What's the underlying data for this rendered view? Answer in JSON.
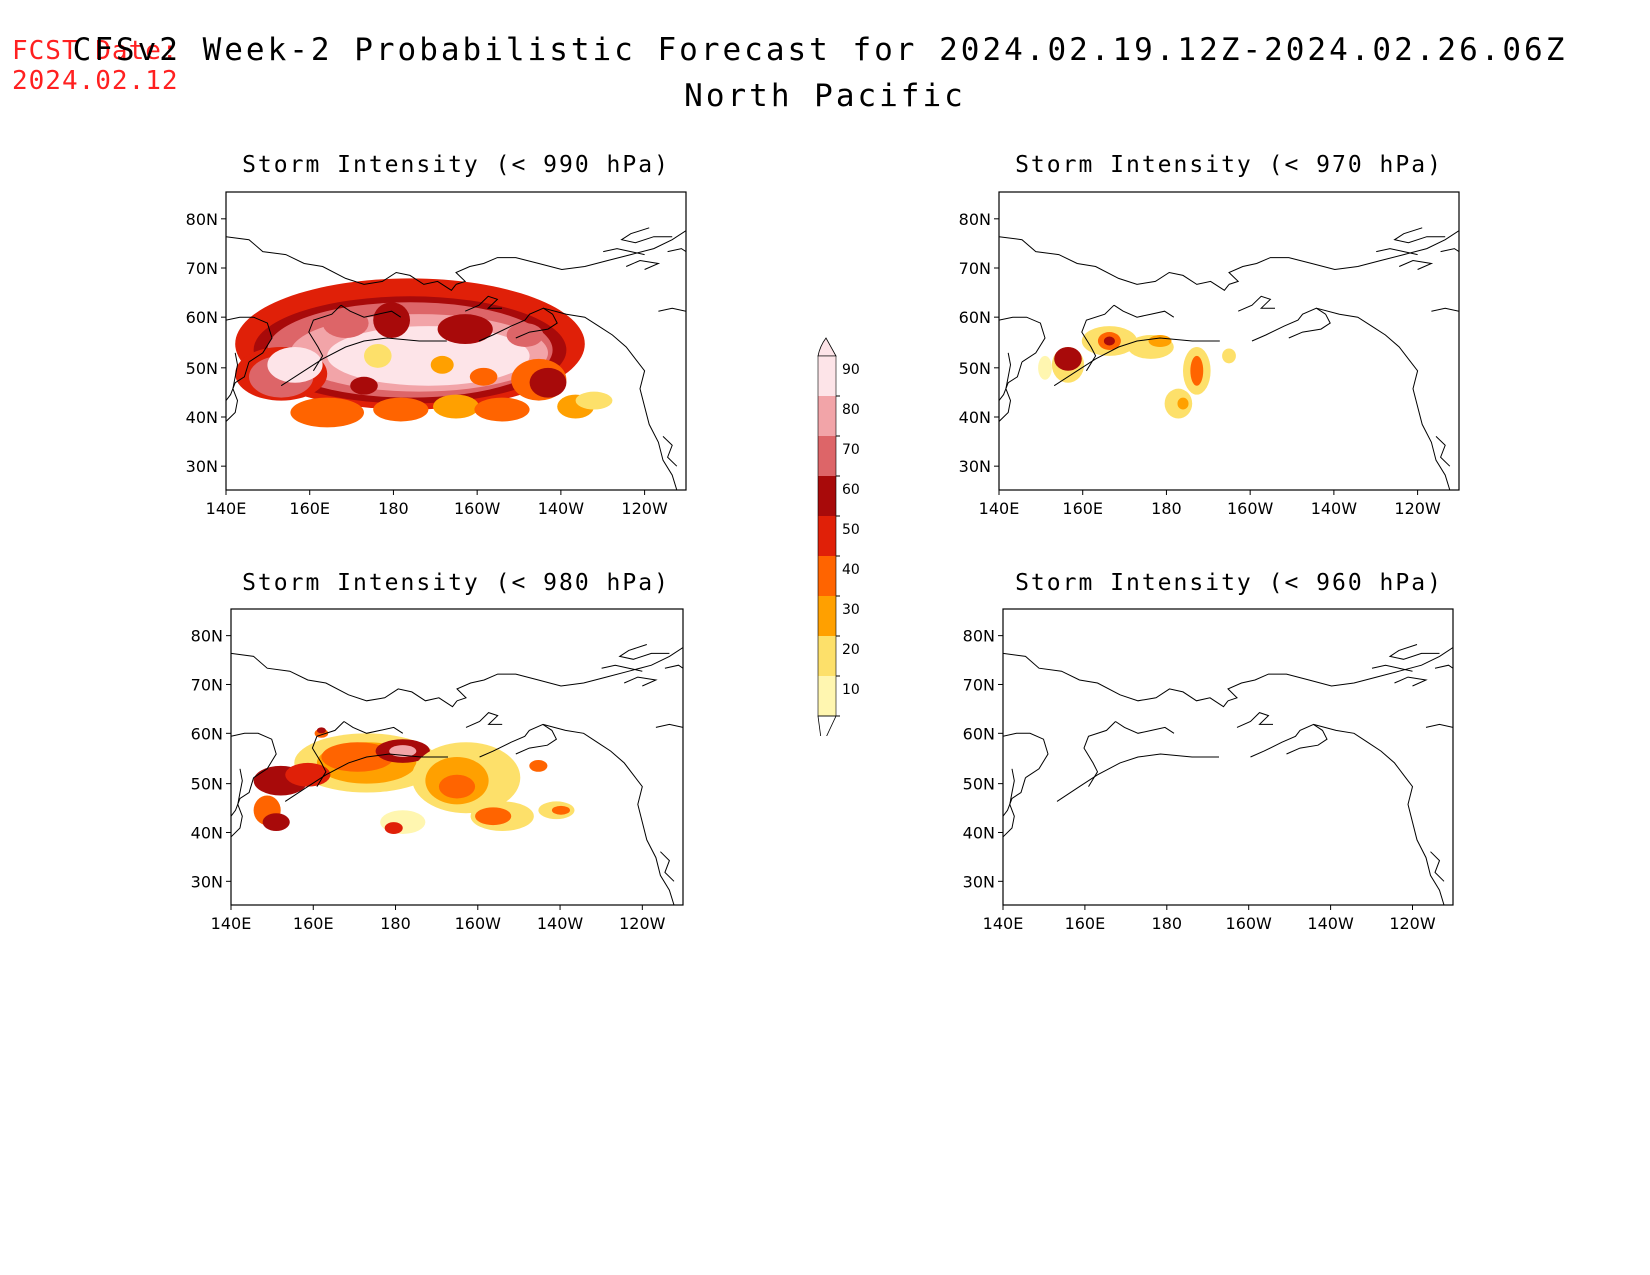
{
  "header": {
    "fcst_label": "FCST Date:",
    "fcst_date": "2024.02.12",
    "title": "CFSv2 Week-2 Probabilistic Forecast for 2024.02.19.12Z-2024.02.26.06Z",
    "subtitle": "North Pacific"
  },
  "axes": {
    "lat_labels": [
      "80N",
      "70N",
      "60N",
      "50N",
      "40N",
      "30N"
    ],
    "lon_labels": [
      "140E",
      "160E",
      "180",
      "160W",
      "140W",
      "120W"
    ]
  },
  "panels": [
    {
      "id": "p990",
      "title": "Storm Intensity (< 990 hPa)"
    },
    {
      "id": "p970",
      "title": "Storm Intensity (< 970 hPa)"
    },
    {
      "id": "p980",
      "title": "Storm Intensity (< 980 hPa)"
    },
    {
      "id": "p960",
      "title": "Storm Intensity (< 960 hPa)"
    }
  ],
  "colorbar": {
    "labels": [
      "90",
      "80",
      "70",
      "60",
      "50",
      "40",
      "30",
      "20",
      "10"
    ],
    "colors": [
      "#fde4e8",
      "#f2a4a8",
      "#dd6568",
      "#a80a0a",
      "#e02008",
      "#ff6400",
      "#ffa000",
      "#fde06a",
      "#fff6b0"
    ]
  }
}
